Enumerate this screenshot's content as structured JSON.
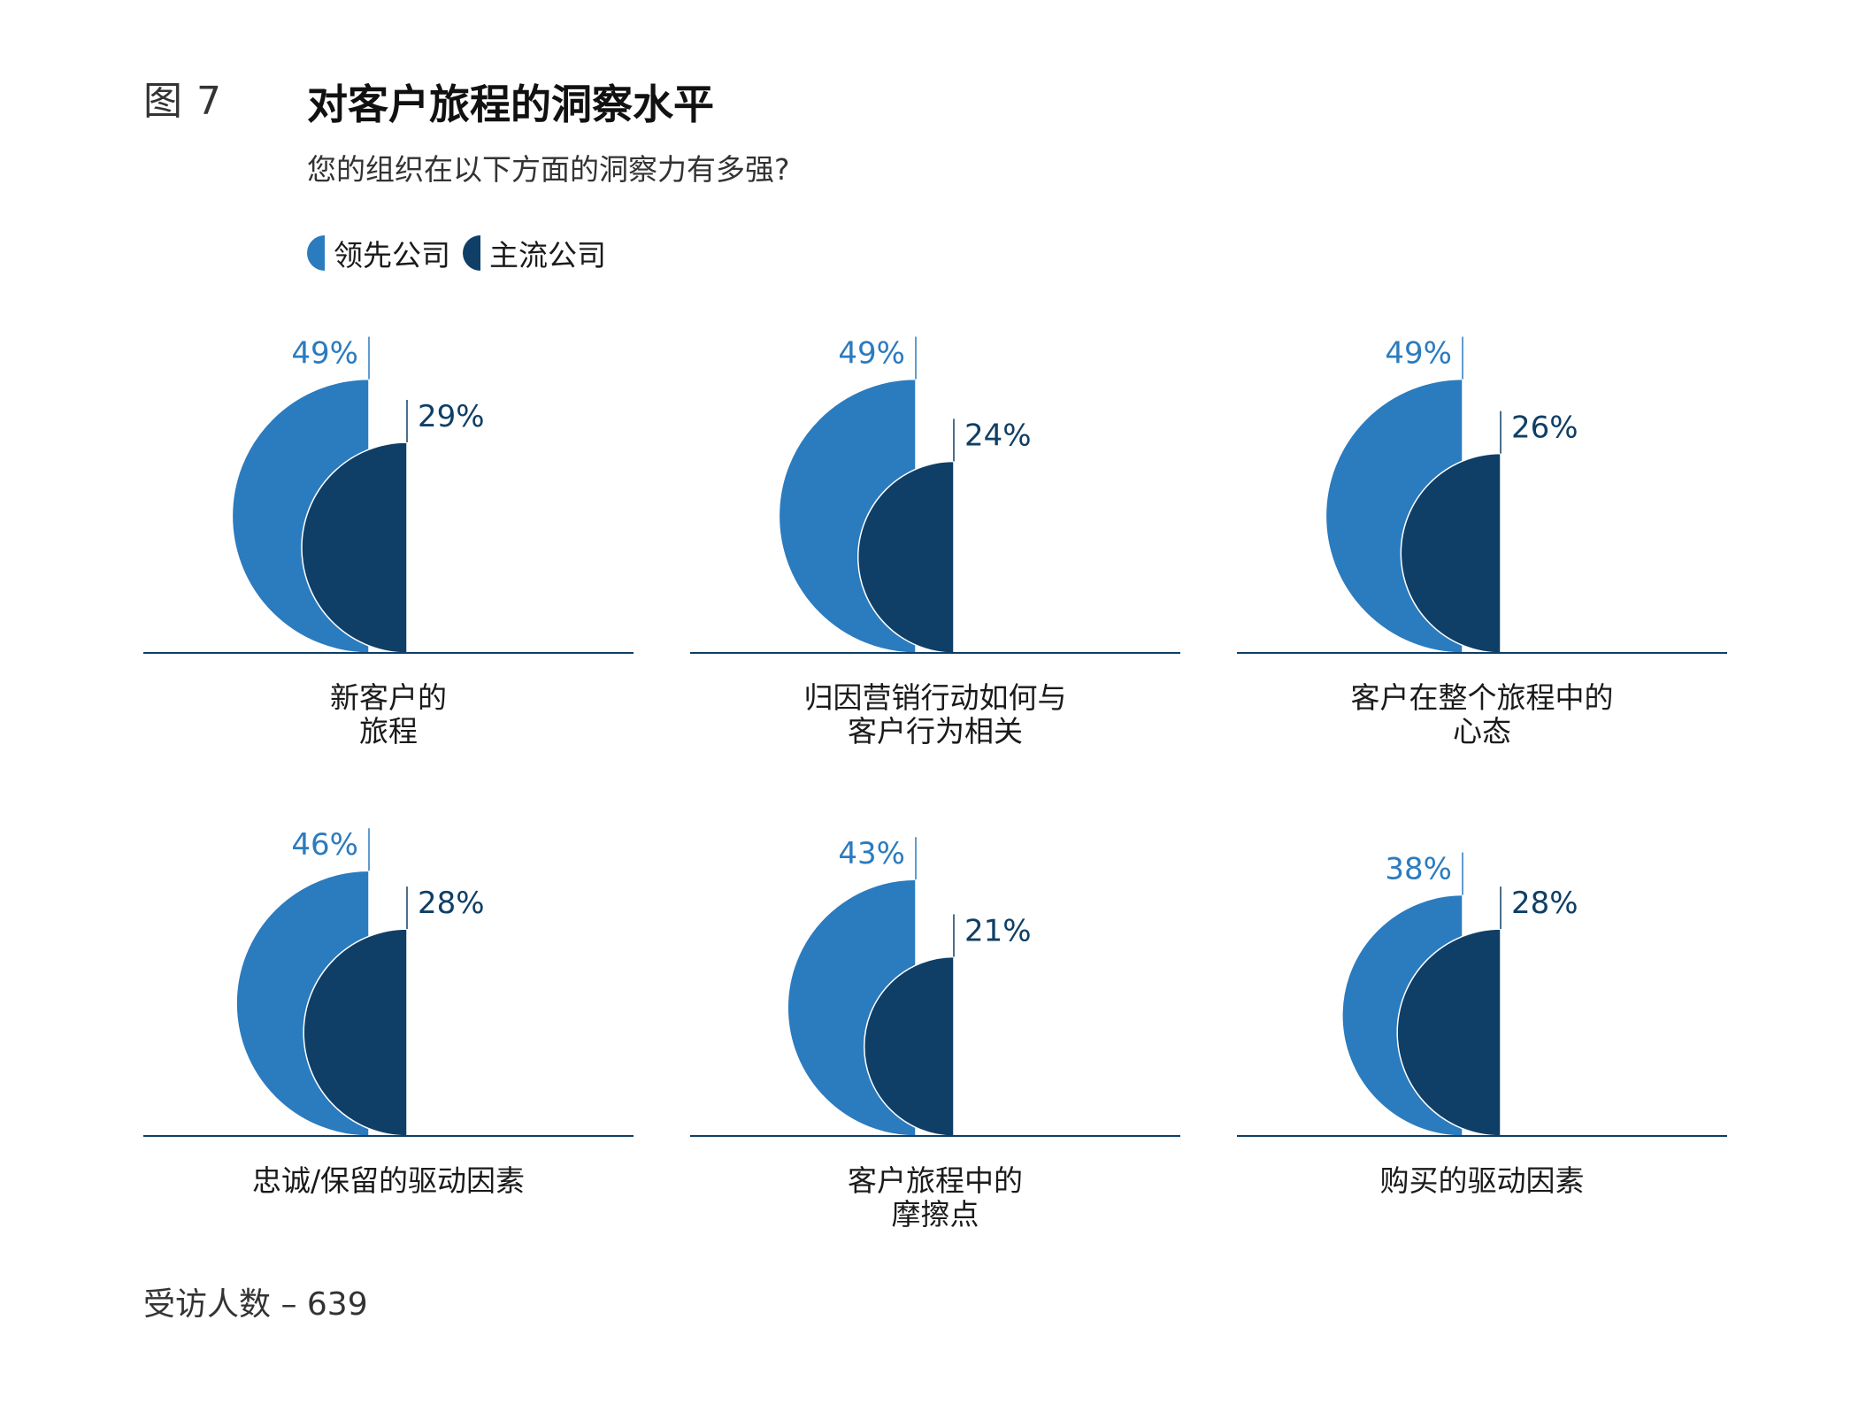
{
  "figure": {
    "number": "图 7",
    "title": "对客户旅程的洞察水平",
    "subtitle": "您的组织在以下方面的洞察力有多强?"
  },
  "legend": [
    {
      "label": "领先公司",
      "color": "#2b7bbf"
    },
    {
      "label": "主流公司",
      "color": "#0f3f66"
    }
  ],
  "colors": {
    "leader": "#2b7bbf",
    "mainstream": "#0f3f66",
    "baseline": "#0f3f66",
    "leader_label": "#2b7bbf",
    "mainstream_label": "#0f3f66"
  },
  "chart_data": {
    "type": "half-circle proportional area",
    "series": [
      {
        "name": "领先公司",
        "values": [
          49,
          49,
          49,
          46,
          43,
          38
        ]
      },
      {
        "name": "主流公司",
        "values": [
          29,
          24,
          26,
          28,
          21,
          28
        ]
      }
    ],
    "categories": [
      "新客户的\n旅程",
      "归因营销行动如何与\n客户行为相关",
      "客户在整个旅程中的\n心态",
      "忠诚/保留的驱动因素",
      "客户旅程中的\n摩擦点",
      "购买的驱动因素"
    ],
    "value_suffix": "%"
  },
  "footnote": "受访人数 – 639"
}
